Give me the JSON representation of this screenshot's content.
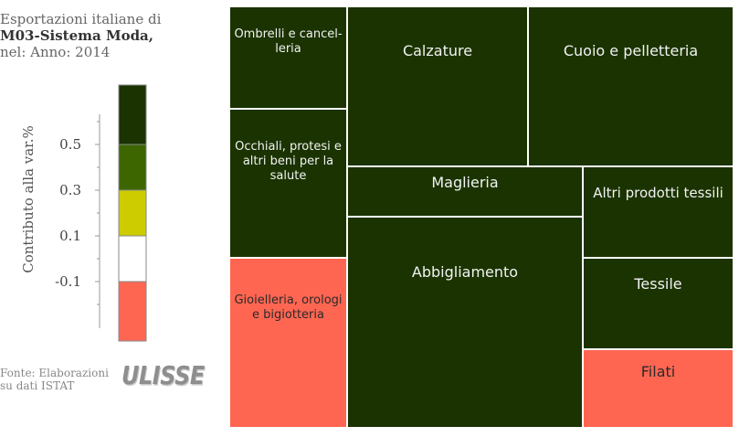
{
  "title": {
    "line1": "Esportazioni italiane di",
    "line2": "M03-Sistema Moda,",
    "line3": "nel: Anno: 2014"
  },
  "legend": {
    "axis_label": "Contributo alla var.%",
    "ticks": [
      "0.5",
      "0.3",
      "0.1",
      "-0.1"
    ],
    "bands": [
      {
        "color": "#1a3300",
        "range": "> 0.5"
      },
      {
        "color": "#3d6600",
        "range": "0.3 – 0.5"
      },
      {
        "color": "#cccc00",
        "range": "0.1 – 0.3"
      },
      {
        "color": "#ffffff",
        "range": "-0.1 – 0.1"
      },
      {
        "color": "#ff6652",
        "range": "< -0.1"
      }
    ]
  },
  "source": {
    "line1": "Fonte: Elaborazioni",
    "line2": "su dati ISTAT"
  },
  "logo_text": "ULISSE",
  "chart_data": {
    "type": "treemap",
    "title": "Esportazioni italiane di M03-Sistema Moda, nel: Anno: 2014",
    "color_scale_label": "Contributo alla var.%",
    "tiles": [
      {
        "label": "Ombrelli e cancel-leria",
        "lines": [
          "Ombrelli e cancel-",
          "leria"
        ],
        "color": "#1a3300",
        "class": "> 0.5"
      },
      {
        "label": "Calzature",
        "lines": [
          "Calzature"
        ],
        "color": "#1a3300",
        "class": "> 0.5"
      },
      {
        "label": "Cuoio e pelletteria",
        "lines": [
          "Cuoio e pelletteria"
        ],
        "color": "#1a3300",
        "class": "> 0.5"
      },
      {
        "label": "Occhiali, protesi e altri beni per la salute",
        "lines": [
          "Occhiali, protesi e",
          "altri beni per la",
          "salute"
        ],
        "color": "#1a3300",
        "class": "> 0.5"
      },
      {
        "label": "Maglieria",
        "lines": [
          "Maglieria"
        ],
        "color": "#1a3300",
        "class": "> 0.5"
      },
      {
        "label": "Altri prodotti tessili",
        "lines": [
          "Altri prodotti tessili"
        ],
        "color": "#1a3300",
        "class": "> 0.5"
      },
      {
        "label": "Abbigliamento",
        "lines": [
          "Abbigliamento"
        ],
        "color": "#1a3300",
        "class": "> 0.5"
      },
      {
        "label": "Tessile",
        "lines": [
          "Tessile"
        ],
        "color": "#1a3300",
        "class": "> 0.5"
      },
      {
        "label": "Gioielleria, orologi e bigiotteria",
        "lines": [
          "Gioielleria, orologi",
          "e bigiotteria"
        ],
        "color": "#ff6652",
        "class": "< -0.1"
      },
      {
        "label": "Filati",
        "lines": [
          "Filati"
        ],
        "color": "#ff6652",
        "class": "< -0.1"
      }
    ]
  }
}
